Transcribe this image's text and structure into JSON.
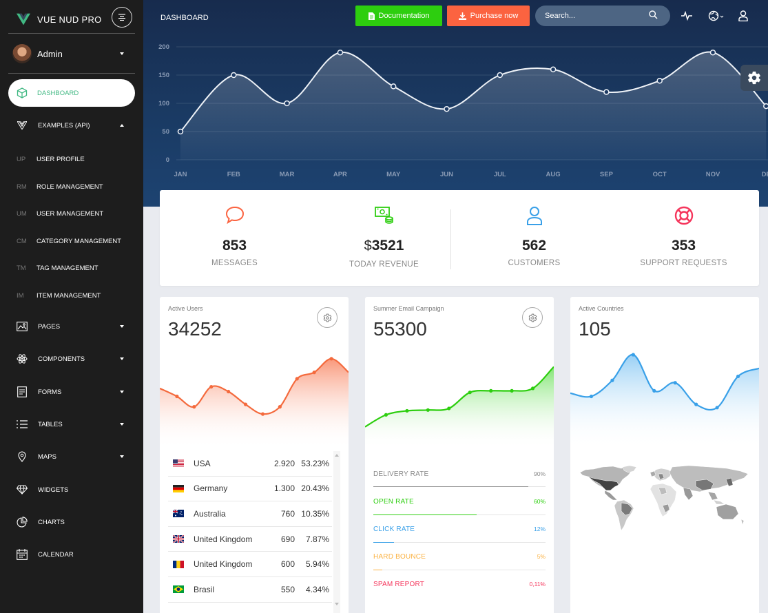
{
  "brand": {
    "name": "VUE NUD PRO"
  },
  "user": {
    "name": "Admin"
  },
  "sidebar": {
    "active": {
      "label": "DASHBOARD"
    },
    "examples": {
      "label": "EXAMPLES (API)"
    },
    "sub_items": [
      {
        "abbr": "UP",
        "label": "USER PROFILE"
      },
      {
        "abbr": "RM",
        "label": "ROLE MANAGEMENT"
      },
      {
        "abbr": "UM",
        "label": "USER MANAGEMENT"
      },
      {
        "abbr": "CM",
        "label": "CATEGORY MANAGEMENT"
      },
      {
        "abbr": "TM",
        "label": "TAG MANAGEMENT"
      },
      {
        "abbr": "IM",
        "label": "ITEM MANAGEMENT"
      }
    ],
    "items": [
      {
        "label": "PAGES",
        "icon": "image-icon",
        "caret": true
      },
      {
        "label": "COMPONENTS",
        "icon": "atom-icon",
        "caret": true
      },
      {
        "label": "FORMS",
        "icon": "form-icon",
        "caret": true
      },
      {
        "label": "TABLES",
        "icon": "list-icon",
        "caret": true
      },
      {
        "label": "MAPS",
        "icon": "map-pin-icon",
        "caret": true
      },
      {
        "label": "WIDGETS",
        "icon": "diamond-icon",
        "caret": false
      },
      {
        "label": "CHARTS",
        "icon": "pie-chart-icon",
        "caret": false
      },
      {
        "label": "CALENDAR",
        "icon": "calendar-icon",
        "caret": false
      }
    ]
  },
  "header": {
    "title": "DASHBOARD",
    "documentation_label": "Documentation",
    "purchase_label": "Purchase now",
    "search_placeholder": "Search..."
  },
  "chart_data": {
    "type": "line",
    "categories": [
      "JAN",
      "FEB",
      "MAR",
      "APR",
      "MAY",
      "JUN",
      "JUL",
      "AUG",
      "SEP",
      "OCT",
      "NOV",
      "DEC"
    ],
    "values": [
      50,
      150,
      100,
      190,
      130,
      90,
      150,
      160,
      120,
      140,
      190,
      95
    ],
    "yticks": [
      0,
      50,
      100,
      150,
      200
    ],
    "ylim": [
      0,
      200
    ],
    "xlabel": "",
    "ylabel": "",
    "grid": true,
    "tick_labels_shown": [
      "JAN",
      "FEB",
      "MAR",
      "APR",
      "MAY",
      "JUN",
      "JUL",
      "AUG",
      "SEP",
      "OCT",
      "NOV",
      "DE"
    ]
  },
  "stats": [
    {
      "value": "853",
      "currency": "",
      "label": "MESSAGES",
      "icon": "chat-bubble-icon",
      "color": "#fb6340"
    },
    {
      "value": "3521",
      "currency": "$",
      "label": "TODAY REVENUE",
      "icon": "money-icon",
      "color": "#2dce0f"
    },
    {
      "value": "562",
      "currency": "",
      "label": "CUSTOMERS",
      "icon": "user-icon",
      "color": "#39a0e8"
    },
    {
      "value": "353",
      "currency": "",
      "label": "SUPPORT REQUESTS",
      "icon": "lifebuoy-icon",
      "color": "#f5365c"
    }
  ],
  "cards": {
    "active_users": {
      "title": "Active Users",
      "value": "34252",
      "sparkline": [
        68,
        58,
        45,
        70,
        64,
        48,
        36,
        45,
        80,
        88,
        105,
        88
      ],
      "table": [
        {
          "country": "USA",
          "flag": "us-flag-icon",
          "value": "2.920",
          "percent": "53.23%"
        },
        {
          "country": "Germany",
          "flag": "de-flag-icon",
          "value": "1.300",
          "percent": "20.43%"
        },
        {
          "country": "Australia",
          "flag": "au-flag-icon",
          "value": "760",
          "percent": "10.35%"
        },
        {
          "country": "United Kingdom",
          "flag": "gb-flag-icon",
          "value": "690",
          "percent": "7.87%"
        },
        {
          "country": "United Kingdom",
          "flag": "ro-flag-icon",
          "value": "600",
          "percent": "5.94%"
        },
        {
          "country": "Brasil",
          "flag": "br-flag-icon",
          "value": "550",
          "percent": "4.34%"
        }
      ]
    },
    "email_campaign": {
      "title": "Summer Email Campaign",
      "value": "55300",
      "sparkline": [
        20,
        35,
        40,
        41,
        43,
        63,
        65,
        65,
        68,
        95
      ],
      "rates": [
        {
          "label": "DELIVERY RATE",
          "value": "90%",
          "fraction": 0.9,
          "color": "#9a9a9a"
        },
        {
          "label": "OPEN RATE",
          "value": "60%",
          "fraction": 0.6,
          "color": "#2dce0f"
        },
        {
          "label": "CLICK RATE",
          "value": "12%",
          "fraction": 0.12,
          "color": "#39a0e8"
        },
        {
          "label": "HARD BOUNCE",
          "value": "5%",
          "fraction": 0.05,
          "color": "#fbb140"
        },
        {
          "label": "SPAM REPORT",
          "value": "0,11%",
          "fraction": 0.0011,
          "color": "#f5365c"
        }
      ]
    },
    "active_countries": {
      "title": "Active Countries",
      "value": "105",
      "sparkline": [
        62,
        58,
        78,
        110,
        65,
        75,
        48,
        44,
        83,
        93
      ]
    }
  },
  "colors": {
    "accent_green": "#41b883",
    "sidebar_bg": "#1d1d1d",
    "header_bg": "#172b4d"
  }
}
